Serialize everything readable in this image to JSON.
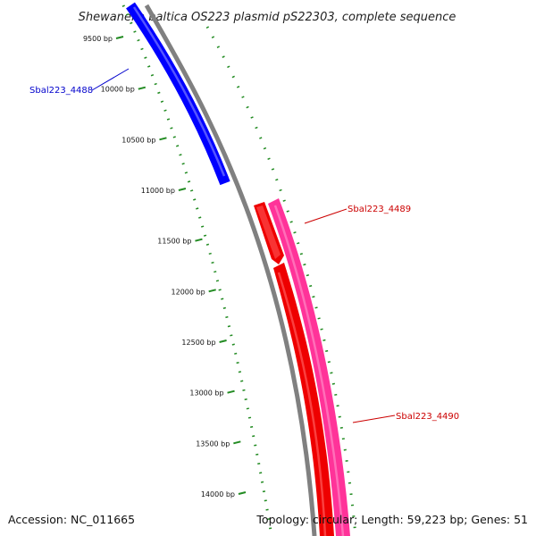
{
  "map": {
    "title": "Shewanella baltica OS223 plasmid pS22303, complete sequence",
    "accession": "Accession: NC_011665",
    "summary": "Topology: circular; Length: 59,223 bp; Genes: 51",
    "ticks": [
      {
        "bp": 9500,
        "label": "9500 bp"
      },
      {
        "bp": 10000,
        "label": "10000 bp"
      },
      {
        "bp": 10500,
        "label": "10500 bp"
      },
      {
        "bp": 11000,
        "label": "11000 bp"
      },
      {
        "bp": 11500,
        "label": "11500 bp"
      },
      {
        "bp": 12000,
        "label": "12000 bp"
      },
      {
        "bp": 12500,
        "label": "12500 bp"
      },
      {
        "bp": 13000,
        "label": "13000 bp"
      },
      {
        "bp": 13500,
        "label": "13500 bp"
      },
      {
        "bp": 14000,
        "label": "14000 bp"
      }
    ],
    "genes": [
      {
        "name": "Sbal223_4488",
        "color": "#0000ff"
      },
      {
        "name": "Sbal223_4489",
        "color": "#ee0000"
      },
      {
        "name": "Sbal223_4490",
        "color": "#ee0000"
      }
    ],
    "colors": {
      "backbone": "#808080",
      "gc_skew": "#228b22",
      "forward_cds": "#0000ff",
      "reverse_cds": "#ee0000",
      "reverse_gene": "#ff3399"
    }
  }
}
